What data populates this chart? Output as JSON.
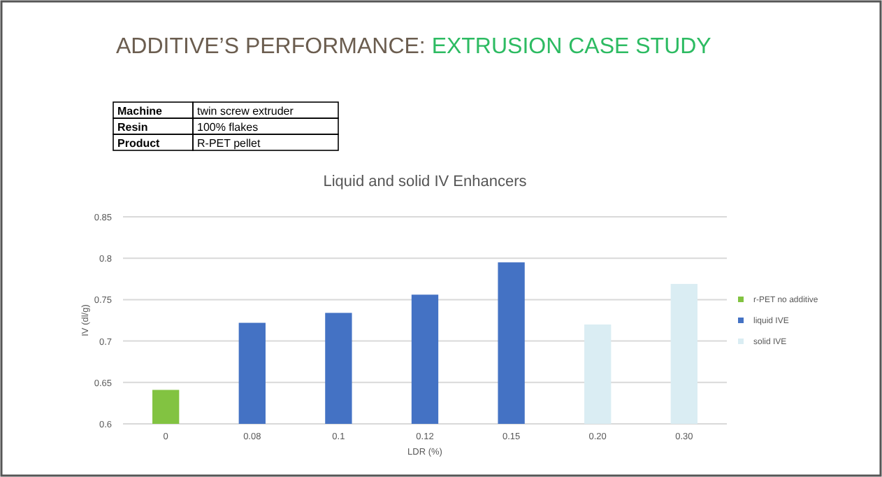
{
  "chart_data": {
    "type": "bar",
    "title": "Liquid and solid IV Enhancers",
    "xlabel": "LDR (%)",
    "ylabel": "IV (dl/g)",
    "annotations": [
      "ADDITIVE’S PERFORMANCE: ",
      "EXTRUSION CASE STUDY",
      "Machine",
      "twin screw extruder",
      "Resin",
      "100% flakes",
      "Product",
      "R-PET pellet"
    ],
    "categories": [
      "0",
      "0.08",
      "0.1",
      "0.12",
      "0.15",
      "0.20",
      "0.30"
    ],
    "series": [
      {
        "name": "r-PET no additive",
        "color": "#82c341",
        "values": [
          0.641,
          null,
          null,
          null,
          null,
          null,
          null
        ]
      },
      {
        "name": "liquid IVE",
        "color": "#4472c4",
        "values": [
          null,
          0.722,
          0.734,
          0.756,
          0.795,
          null,
          null
        ]
      },
      {
        "name": "solid IVE",
        "color": "#daedf3",
        "values": [
          null,
          null,
          null,
          null,
          null,
          0.72,
          0.769
        ]
      }
    ],
    "ylim": [
      0.6,
      0.85
    ],
    "yticks": [
      {
        "value": 0.6,
        "label": "0.6"
      },
      0.65,
      {
        "value": 0.7,
        "label": "0.7"
      },
      0.75,
      {
        "value": 0.8,
        "label": "0.8"
      },
      0.85
    ],
    "grid": "y",
    "legend": "right"
  }
}
